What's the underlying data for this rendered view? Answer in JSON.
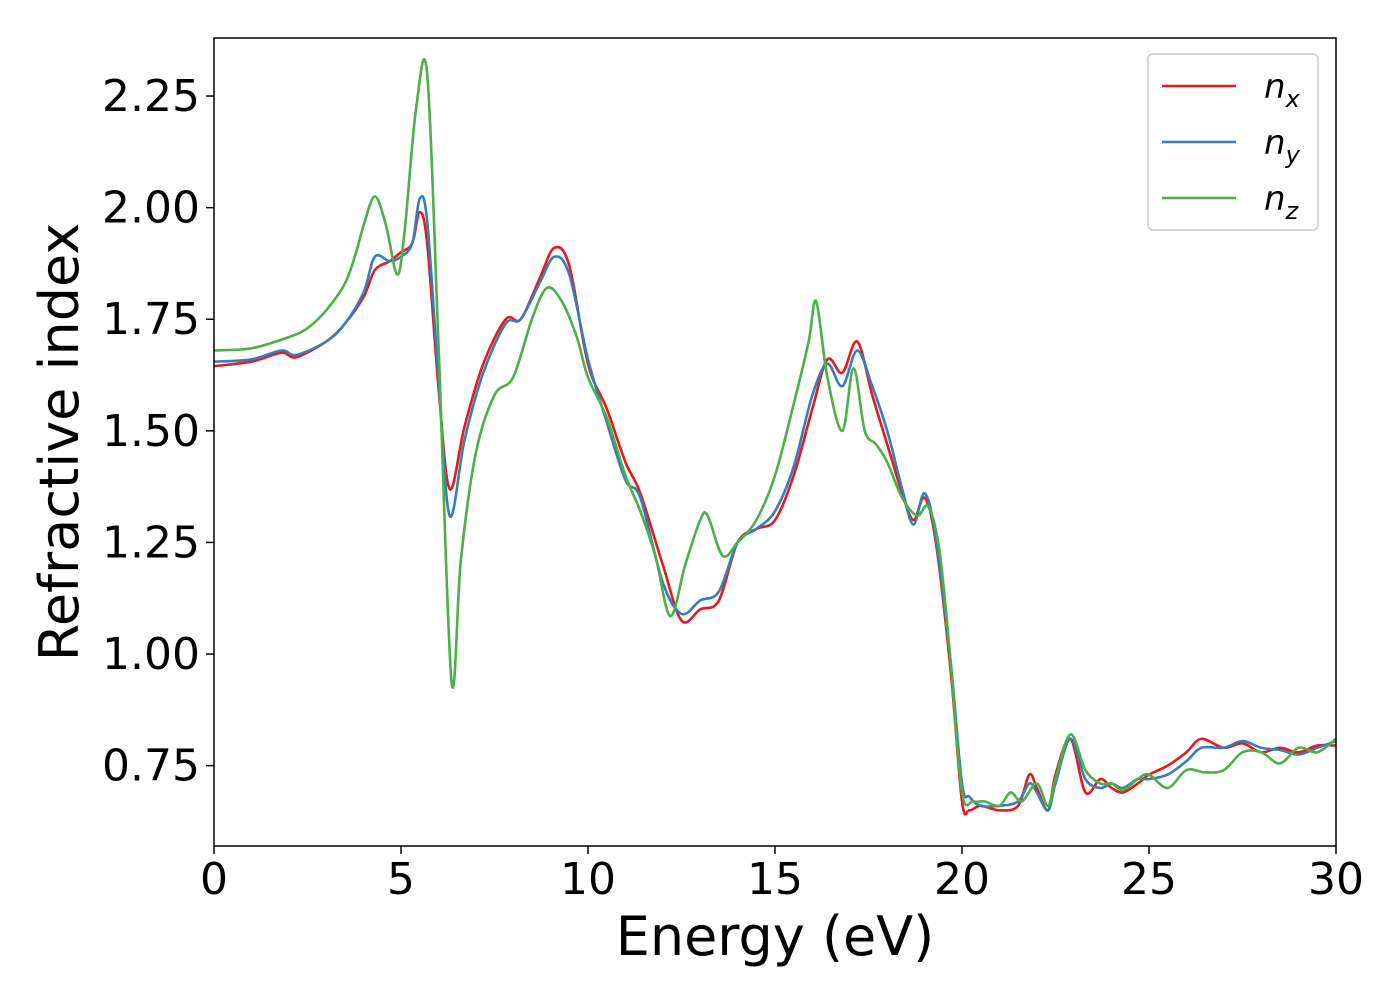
{
  "chart_data": {
    "type": "line",
    "title": "",
    "xlabel": "Energy (eV)",
    "ylabel": "Refractive index",
    "xlim": [
      0,
      30
    ],
    "ylim": [
      0.57,
      2.38
    ],
    "xticks": [
      0,
      5,
      10,
      15,
      20,
      25,
      30
    ],
    "xtick_labels": [
      "0",
      "5",
      "10",
      "15",
      "20",
      "25",
      "30"
    ],
    "yticks": [
      0.75,
      1.0,
      1.25,
      1.5,
      1.75,
      2.0,
      2.25
    ],
    "ytick_labels": [
      "0.75",
      "1.00",
      "1.25",
      "1.50",
      "1.75",
      "2.00",
      "2.25"
    ],
    "grid": false,
    "legend_position": "top-right",
    "series": [
      {
        "name": "n_x",
        "legend_base": "n",
        "legend_sub": "x",
        "color": "#e41a1c",
        "x": [
          0,
          1,
          1.8,
          2.2,
          3,
          3.5,
          4,
          4.3,
          4.7,
          5,
          5.3,
          5.5,
          5.7,
          6,
          6.3,
          6.7,
          7.2,
          7.8,
          8.2,
          8.7,
          9.1,
          9.5,
          10,
          10.5,
          11,
          11.4,
          12,
          12.5,
          13,
          13.5,
          14,
          14.5,
          15,
          15.5,
          16,
          16.4,
          16.8,
          17.2,
          17.6,
          18,
          18.4,
          18.7,
          19,
          19.3,
          19.7,
          20,
          20.2,
          20.5,
          21,
          21.5,
          21.8,
          22,
          22.3,
          22.5,
          22.9,
          23.3,
          23.7,
          24,
          24.3,
          24.7,
          25,
          25.5,
          26,
          26.4,
          27,
          27.5,
          28,
          28.5,
          29,
          29.5,
          30
        ],
        "y": [
          1.645,
          1.655,
          1.675,
          1.665,
          1.7,
          1.74,
          1.8,
          1.86,
          1.88,
          1.9,
          1.92,
          1.99,
          1.92,
          1.6,
          1.37,
          1.51,
          1.65,
          1.75,
          1.75,
          1.84,
          1.91,
          1.87,
          1.65,
          1.55,
          1.43,
          1.36,
          1.2,
          1.075,
          1.1,
          1.12,
          1.25,
          1.28,
          1.3,
          1.4,
          1.55,
          1.66,
          1.63,
          1.7,
          1.58,
          1.47,
          1.36,
          1.3,
          1.35,
          1.25,
          0.96,
          0.67,
          0.65,
          0.66,
          0.65,
          0.66,
          0.73,
          0.7,
          0.65,
          0.73,
          0.81,
          0.69,
          0.72,
          0.7,
          0.69,
          0.71,
          0.73,
          0.75,
          0.78,
          0.81,
          0.79,
          0.8,
          0.78,
          0.79,
          0.78,
          0.795,
          0.795
        ]
      },
      {
        "name": "n_y",
        "legend_base": "n",
        "legend_sub": "y",
        "color": "#377eb8",
        "x": [
          0,
          1,
          1.8,
          2.2,
          3,
          3.5,
          4,
          4.3,
          4.7,
          5,
          5.3,
          5.5,
          5.7,
          6,
          6.3,
          6.7,
          7.2,
          7.8,
          8.2,
          8.7,
          9.1,
          9.5,
          10,
          10.5,
          11,
          11.4,
          12,
          12.5,
          13,
          13.5,
          14,
          14.5,
          15,
          15.5,
          16,
          16.4,
          16.8,
          17.2,
          17.6,
          18,
          18.4,
          18.7,
          19,
          19.3,
          19.7,
          20,
          20.2,
          20.5,
          21,
          21.5,
          21.8,
          22,
          22.3,
          22.5,
          22.9,
          23.3,
          23.7,
          24,
          24.3,
          24.7,
          25,
          25.5,
          26,
          26.4,
          27,
          27.5,
          28,
          28.5,
          29,
          29.5,
          30
        ],
        "y": [
          1.655,
          1.66,
          1.68,
          1.67,
          1.7,
          1.74,
          1.81,
          1.89,
          1.88,
          1.89,
          1.92,
          2.02,
          1.97,
          1.62,
          1.31,
          1.48,
          1.63,
          1.74,
          1.75,
          1.83,
          1.89,
          1.85,
          1.66,
          1.52,
          1.39,
          1.35,
          1.16,
          1.09,
          1.12,
          1.14,
          1.25,
          1.28,
          1.32,
          1.42,
          1.58,
          1.65,
          1.6,
          1.68,
          1.6,
          1.5,
          1.37,
          1.29,
          1.36,
          1.26,
          0.98,
          0.71,
          0.68,
          0.66,
          0.66,
          0.67,
          0.71,
          0.69,
          0.65,
          0.71,
          0.81,
          0.72,
          0.7,
          0.71,
          0.7,
          0.72,
          0.72,
          0.73,
          0.76,
          0.79,
          0.79,
          0.805,
          0.79,
          0.785,
          0.775,
          0.79,
          0.805
        ]
      },
      {
        "name": "n_z",
        "legend_base": "n",
        "legend_sub": "z",
        "color": "#4daf4a",
        "x": [
          0,
          1,
          2,
          2.5,
          3,
          3.5,
          3.8,
          4,
          4.3,
          4.6,
          4.9,
          5.1,
          5.4,
          5.7,
          6,
          6.35,
          6.6,
          7,
          7.5,
          8,
          8.5,
          8.9,
          9.3,
          9.7,
          10,
          10.5,
          11,
          11.4,
          11.8,
          12.2,
          12.6,
          13,
          13.2,
          13.6,
          14,
          14.5,
          15,
          15.5,
          15.9,
          16.1,
          16.4,
          16.8,
          17.1,
          17.4,
          17.7,
          18,
          18.4,
          18.8,
          19.1,
          19.4,
          19.7,
          20,
          20.3,
          20.6,
          21,
          21.3,
          21.6,
          22,
          22.3,
          22.5,
          22.9,
          23.3,
          23.7,
          24,
          24.3,
          24.7,
          25,
          25.5,
          26,
          26.5,
          27,
          27.5,
          28,
          28.5,
          29,
          29.5,
          30
        ],
        "y": [
          1.68,
          1.685,
          1.71,
          1.73,
          1.77,
          1.83,
          1.9,
          1.96,
          2.025,
          1.96,
          1.85,
          1.95,
          2.22,
          2.3,
          1.7,
          0.94,
          1.21,
          1.45,
          1.58,
          1.62,
          1.75,
          1.82,
          1.79,
          1.71,
          1.62,
          1.53,
          1.4,
          1.32,
          1.22,
          1.085,
          1.2,
          1.3,
          1.31,
          1.22,
          1.25,
          1.3,
          1.4,
          1.56,
          1.7,
          1.79,
          1.62,
          1.5,
          1.64,
          1.5,
          1.47,
          1.43,
          1.35,
          1.31,
          1.33,
          1.23,
          0.98,
          0.69,
          0.67,
          0.67,
          0.66,
          0.69,
          0.67,
          0.71,
          0.66,
          0.72,
          0.82,
          0.74,
          0.71,
          0.71,
          0.695,
          0.72,
          0.73,
          0.7,
          0.74,
          0.735,
          0.74,
          0.78,
          0.78,
          0.755,
          0.79,
          0.78,
          0.81
        ]
      }
    ]
  }
}
